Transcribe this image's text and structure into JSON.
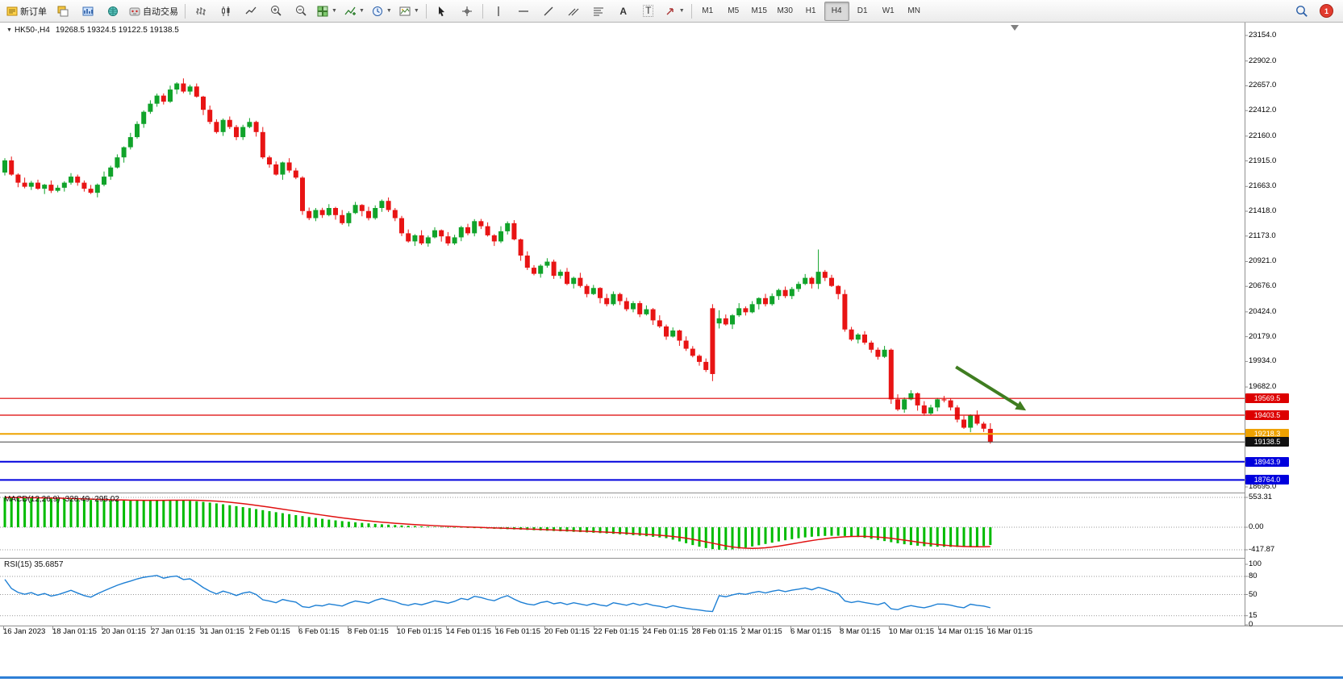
{
  "toolbar": {
    "new_order": "新订单",
    "algo_trading": "自动交易",
    "text_tool": "A",
    "label_tool": "T",
    "timeframes": [
      "M1",
      "M5",
      "M15",
      "M30",
      "H1",
      "H4",
      "D1",
      "W1",
      "MN"
    ],
    "active_timeframe": "H4",
    "notification_count": "1"
  },
  "chart_header": {
    "symbol": "HK50-,H4",
    "ohlc": "19268.5 19324.5 19122.5 19138.5"
  },
  "panels": {
    "macd_label": "MACD(12,26,9) -328.49 -295.02",
    "rsi_label": "RSI(15) 35.6857"
  },
  "price_axis": {
    "ticks": [
      23154,
      22902,
      22657,
      22412,
      22160,
      21915,
      21663,
      21418,
      21173,
      20921,
      20676,
      20424,
      20179,
      19934,
      19682,
      18695
    ],
    "badges": [
      {
        "value": 19569.5,
        "color": "#dd0000"
      },
      {
        "value": 19403.5,
        "color": "#dd0000"
      },
      {
        "value": 19218.3,
        "color": "#eea200"
      },
      {
        "value": 19138.5,
        "color": "#111111"
      },
      {
        "value": 18943.9,
        "color": "#0000dd"
      },
      {
        "value": 18764.0,
        "color": "#0000dd"
      }
    ]
  },
  "macd_axis": [
    553.31,
    0,
    -417.87
  ],
  "rsi_axis": [
    100,
    80,
    50,
    15,
    0
  ],
  "date_axis": [
    "16 Jan 2023",
    "18 Jan 01:15",
    "20 Jan 01:15",
    "27 Jan 01:15",
    "31 Jan 01:15",
    "2 Feb 01:15",
    "6 Feb 01:15",
    "8 Feb 01:15",
    "10 Feb 01:15",
    "14 Feb 01:15",
    "16 Feb 01:15",
    "20 Feb 01:15",
    "22 Feb 01:15",
    "24 Feb 01:15",
    "28 Feb 01:15",
    "2 Mar 01:15",
    "6 Mar 01:15",
    "8 Mar 01:15",
    "10 Mar 01:15",
    "14 Mar 01:15",
    "16 Mar 01:15"
  ],
  "colors": {
    "candle_up": "#10a32a",
    "candle_down": "#e81414",
    "macd_histogram": "#00bb00",
    "macd_signal": "#e01010",
    "rsi_line": "#1d7fd4",
    "axis_line": "#909090",
    "level_dotted": "#999999",
    "taskbar_accent": "#2e7fd6"
  },
  "chart_data": {
    "type": "candlestick",
    "symbol": "HK50-",
    "timeframe": "H4",
    "last_bar": {
      "open": 19268.5,
      "high": 19324.5,
      "low": 19122.5,
      "close": 19138.5
    },
    "price_range": {
      "top_tick": 23154.0,
      "bottom_tick": 18695.0
    },
    "first_open": 21800,
    "closes": [
      21920,
      21780,
      21700,
      21660,
      21700,
      21640,
      21680,
      21620,
      21650,
      21700,
      21760,
      21700,
      21640,
      21600,
      21680,
      21760,
      21850,
      21950,
      22050,
      22150,
      22280,
      22400,
      22480,
      22560,
      22500,
      22620,
      22680,
      22600,
      22650,
      22550,
      22420,
      22300,
      22200,
      22320,
      22250,
      22150,
      22250,
      22300,
      22200,
      21950,
      21880,
      21780,
      21900,
      21820,
      21750,
      21420,
      21350,
      21430,
      21380,
      21450,
      21380,
      21300,
      21400,
      21480,
      21420,
      21350,
      21450,
      21520,
      21430,
      21350,
      21200,
      21120,
      21180,
      21100,
      21160,
      21230,
      21170,
      21100,
      21160,
      21260,
      21200,
      21320,
      21270,
      21180,
      21120,
      21220,
      21300,
      21140,
      20980,
      20860,
      20800,
      20880,
      20920,
      20780,
      20820,
      20700,
      20760,
      20680,
      20600,
      20660,
      20560,
      20500,
      20600,
      20530,
      20450,
      20510,
      20400,
      20450,
      20340,
      20280,
      20180,
      20240,
      20140,
      20060,
      19990,
      19930,
      19850,
      19810,
      20360,
      20300,
      20390,
      20460,
      20420,
      20500,
      20560,
      20500,
      20580,
      20640,
      20580,
      20650,
      20700,
      20760,
      20700,
      20820,
      20760,
      20680,
      20600,
      20250,
      20150,
      20200,
      20120,
      20050,
      19980,
      20050,
      19560,
      19460,
      19560,
      19620,
      19500,
      19420,
      19480,
      19560,
      19550,
      19480,
      19360,
      19280,
      19400,
      19320,
      19270,
      19138.5
    ],
    "wick_up_cycle": [
      22,
      38,
      12,
      50,
      18,
      30,
      8,
      42,
      26,
      14,
      34,
      20
    ],
    "wick_down_cycle": [
      28,
      12,
      45,
      16,
      32,
      10,
      52,
      22,
      15,
      38,
      20,
      30
    ],
    "overrides": {
      "107": [
        20460,
        20500,
        19740,
        19810
      ],
      "108": [
        20310,
        20440,
        20260,
        20360
      ],
      "123": [
        20700,
        21040,
        20650,
        20820
      ],
      "149": [
        19268.5,
        19324.5,
        19122.5,
        19138.5
      ]
    },
    "hlines": [
      {
        "price": 19569.5,
        "color": "#dd0000",
        "width": 1.2
      },
      {
        "price": 19403.5,
        "color": "#dd0000",
        "width": 1.2
      },
      {
        "price": 19218.3,
        "color": "#eea200",
        "width": 2
      },
      {
        "price": 19138.5,
        "color": "#444444",
        "width": 1
      },
      {
        "price": 18943.9,
        "color": "#0000dd",
        "width": 2
      },
      {
        "price": 18764.0,
        "color": "#0000dd",
        "width": 2
      }
    ],
    "macd": {
      "params": "12,26,9",
      "value": -328.49,
      "signal_value": -295.02,
      "signal_period": 9,
      "axis": {
        "max": 553.31,
        "min": -417.87
      },
      "histogram": [
        553,
        550,
        547,
        544,
        541,
        538,
        534,
        530,
        526,
        522,
        518,
        514,
        510,
        506,
        502,
        499,
        497,
        496,
        496,
        497,
        499,
        501,
        503,
        505,
        506,
        505,
        502,
        497,
        490,
        481,
        470,
        457,
        442,
        426,
        409,
        391,
        373,
        355,
        336,
        317,
        298,
        279,
        261,
        243,
        225,
        207,
        189,
        172,
        156,
        141,
        127,
        114,
        102,
        91,
        81,
        72,
        63,
        55,
        48,
        41,
        34,
        28,
        22,
        17,
        12,
        8,
        4,
        0,
        -4,
        -8,
        -12,
        -16,
        -20,
        -24,
        -28,
        -32,
        -36,
        -40,
        -45,
        -50,
        -55,
        -60,
        -65,
        -70,
        -75,
        -80,
        -85,
        -90,
        -96,
        -102,
        -108,
        -115,
        -122,
        -130,
        -138,
        -147,
        -156,
        -166,
        -177,
        -189,
        -202,
        -230,
        -262,
        -296,
        -330,
        -360,
        -385,
        -405,
        -416,
        -417.87,
        -410,
        -396,
        -378,
        -357,
        -334,
        -310,
        -286,
        -263,
        -241,
        -221,
        -203,
        -188,
        -176,
        -167,
        -161,
        -158,
        -158,
        -162,
        -170,
        -182,
        -197,
        -215,
        -235,
        -256,
        -277,
        -297,
        -315,
        -330,
        -342,
        -351,
        -357,
        -361,
        -363,
        -364,
        -365,
        -367,
        -370,
        -360,
        -345,
        -328.49
      ]
    },
    "rsi": {
      "period": 15,
      "current": 35.6857,
      "levels": [
        80,
        50,
        15
      ],
      "seed_gain": 30,
      "seed_loss": 10
    },
    "trend_arrow": {
      "from_bar": 143.8,
      "from_price": 19880,
      "to_bar": 154.4,
      "to_price": 19450,
      "color": "#3f7d20"
    }
  }
}
